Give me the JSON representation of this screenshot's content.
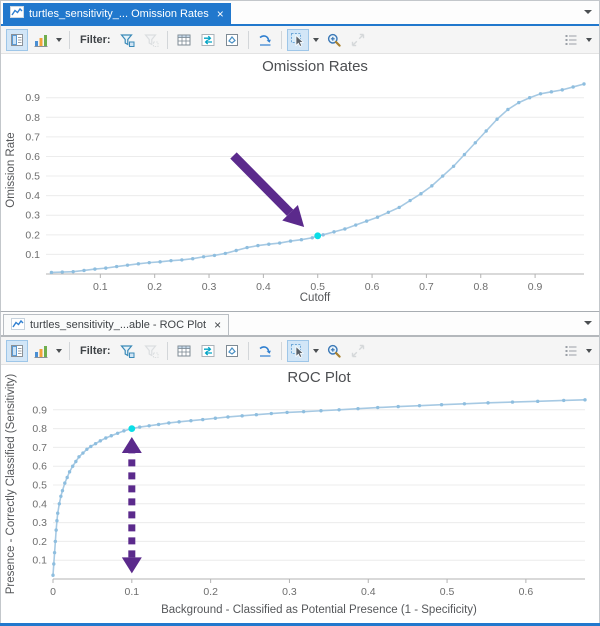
{
  "panels": [
    {
      "tab": {
        "title": "turtles_sensitivity_... Omission Rates",
        "close_glyph": "×"
      },
      "toolbar": {
        "filter_label": "Filter:",
        "icons": [
          "chart-properties",
          "chart-type",
          "filter-by-selection",
          "filter-by-extent",
          "show-table",
          "switch-selection",
          "select-in-chart",
          "refresh-chart",
          "select-tool",
          "zoom-tool",
          "full-extent",
          "chart-list"
        ]
      }
    },
    {
      "tab": {
        "title": "turtles_sensitivity_...able - ROC Plot",
        "close_glyph": "×"
      },
      "toolbar": {
        "filter_label": "Filter:",
        "icons": [
          "chart-properties",
          "chart-type",
          "filter-by-selection",
          "filter-by-extent",
          "show-table",
          "switch-selection",
          "select-in-chart",
          "refresh-chart",
          "select-tool",
          "zoom-tool",
          "full-extent",
          "chart-list"
        ]
      }
    }
  ],
  "colors": {
    "accent_blue": "#2178cd",
    "curve_line": "#a6c9e3",
    "curve_marker": "#8ebedf",
    "highlight_cyan": "#0bdde6",
    "annotation_purple": "#5b2a8c",
    "gridline": "#ececec",
    "axis_line": "#b3b3b3"
  },
  "chart_data": [
    {
      "type": "line",
      "title": "Omission Rates",
      "xlabel": "Cutoff",
      "ylabel": "Omission Rate",
      "xlim": [
        0,
        0.99
      ],
      "ylim": [
        0,
        0.97
      ],
      "xticks": [
        0.1,
        0.2,
        0.3,
        0.4,
        0.5,
        0.6,
        0.7,
        0.8,
        0.9
      ],
      "yticks": [
        0.1,
        0.2,
        0.3,
        0.4,
        0.5,
        0.6,
        0.7,
        0.8,
        0.9
      ],
      "grid": "horizontal",
      "legend": "none",
      "line_color": "#a6c9e3",
      "marker_color": "#8ebedf",
      "x": [
        0.01,
        0.03,
        0.05,
        0.07,
        0.09,
        0.11,
        0.13,
        0.15,
        0.17,
        0.19,
        0.21,
        0.23,
        0.25,
        0.27,
        0.29,
        0.31,
        0.33,
        0.35,
        0.37,
        0.39,
        0.41,
        0.43,
        0.45,
        0.47,
        0.49,
        0.5,
        0.51,
        0.53,
        0.55,
        0.57,
        0.59,
        0.61,
        0.63,
        0.65,
        0.67,
        0.69,
        0.71,
        0.73,
        0.75,
        0.77,
        0.79,
        0.81,
        0.83,
        0.85,
        0.87,
        0.89,
        0.91,
        0.93,
        0.95,
        0.97,
        0.99
      ],
      "y": [
        0.008,
        0.01,
        0.012,
        0.018,
        0.025,
        0.03,
        0.038,
        0.045,
        0.052,
        0.058,
        0.062,
        0.068,
        0.072,
        0.078,
        0.088,
        0.095,
        0.105,
        0.12,
        0.135,
        0.145,
        0.152,
        0.158,
        0.168,
        0.175,
        0.185,
        0.195,
        0.2,
        0.215,
        0.23,
        0.25,
        0.27,
        0.29,
        0.315,
        0.34,
        0.375,
        0.41,
        0.45,
        0.5,
        0.55,
        0.61,
        0.67,
        0.73,
        0.79,
        0.84,
        0.875,
        0.9,
        0.92,
        0.93,
        0.94,
        0.955,
        0.97
      ],
      "highlight": {
        "x": 0.5,
        "y": 0.195,
        "color": "#0bdde6"
      },
      "annotations": [
        {
          "kind": "arrow",
          "style": "solid",
          "from": [
            0.345,
            0.605
          ],
          "to": [
            0.475,
            0.24
          ],
          "color": "#5b2a8c"
        }
      ]
    },
    {
      "type": "line",
      "title": "ROC Plot",
      "xlabel": "Background - Classified as Potential Presence (1 - Specificity)",
      "ylabel": "Presence - Correctly Classified (Sensitivity)",
      "xlim": [
        0,
        0.675
      ],
      "ylim": [
        0,
        1.0
      ],
      "xticks": [
        0,
        0.1,
        0.2,
        0.3,
        0.4,
        0.5,
        0.6
      ],
      "yticks": [
        0.1,
        0.2,
        0.3,
        0.4,
        0.5,
        0.6,
        0.7,
        0.8,
        0.9
      ],
      "grid": "horizontal",
      "legend": "none",
      "line_color": "#a6c9e3",
      "marker_color": "#8ebedf",
      "x": [
        0,
        0.001,
        0.002,
        0.003,
        0.004,
        0.005,
        0.006,
        0.008,
        0.01,
        0.012,
        0.015,
        0.018,
        0.021,
        0.025,
        0.029,
        0.033,
        0.038,
        0.043,
        0.048,
        0.054,
        0.06,
        0.067,
        0.074,
        0.082,
        0.09,
        0.1,
        0.11,
        0.122,
        0.134,
        0.147,
        0.16,
        0.175,
        0.19,
        0.206,
        0.222,
        0.24,
        0.258,
        0.277,
        0.297,
        0.318,
        0.34,
        0.363,
        0.387,
        0.412,
        0.438,
        0.465,
        0.493,
        0.522,
        0.552,
        0.583,
        0.615,
        0.648,
        0.675
      ],
      "y": [
        0.02,
        0.08,
        0.14,
        0.2,
        0.26,
        0.31,
        0.35,
        0.4,
        0.44,
        0.47,
        0.51,
        0.54,
        0.57,
        0.6,
        0.625,
        0.65,
        0.67,
        0.69,
        0.705,
        0.72,
        0.735,
        0.75,
        0.762,
        0.775,
        0.788,
        0.8,
        0.808,
        0.815,
        0.822,
        0.83,
        0.836,
        0.842,
        0.848,
        0.855,
        0.862,
        0.868,
        0.874,
        0.88,
        0.886,
        0.89,
        0.895,
        0.9,
        0.906,
        0.912,
        0.917,
        0.922,
        0.927,
        0.932,
        0.937,
        0.941,
        0.945,
        0.95,
        0.953
      ],
      "highlight": {
        "x": 0.1,
        "y": 0.8,
        "color": "#0bdde6"
      },
      "annotations": [
        {
          "kind": "double-arrow",
          "style": "dashed",
          "x": 0.1,
          "y1": 0.03,
          "y2": 0.755,
          "color": "#5b2a8c"
        }
      ]
    }
  ]
}
